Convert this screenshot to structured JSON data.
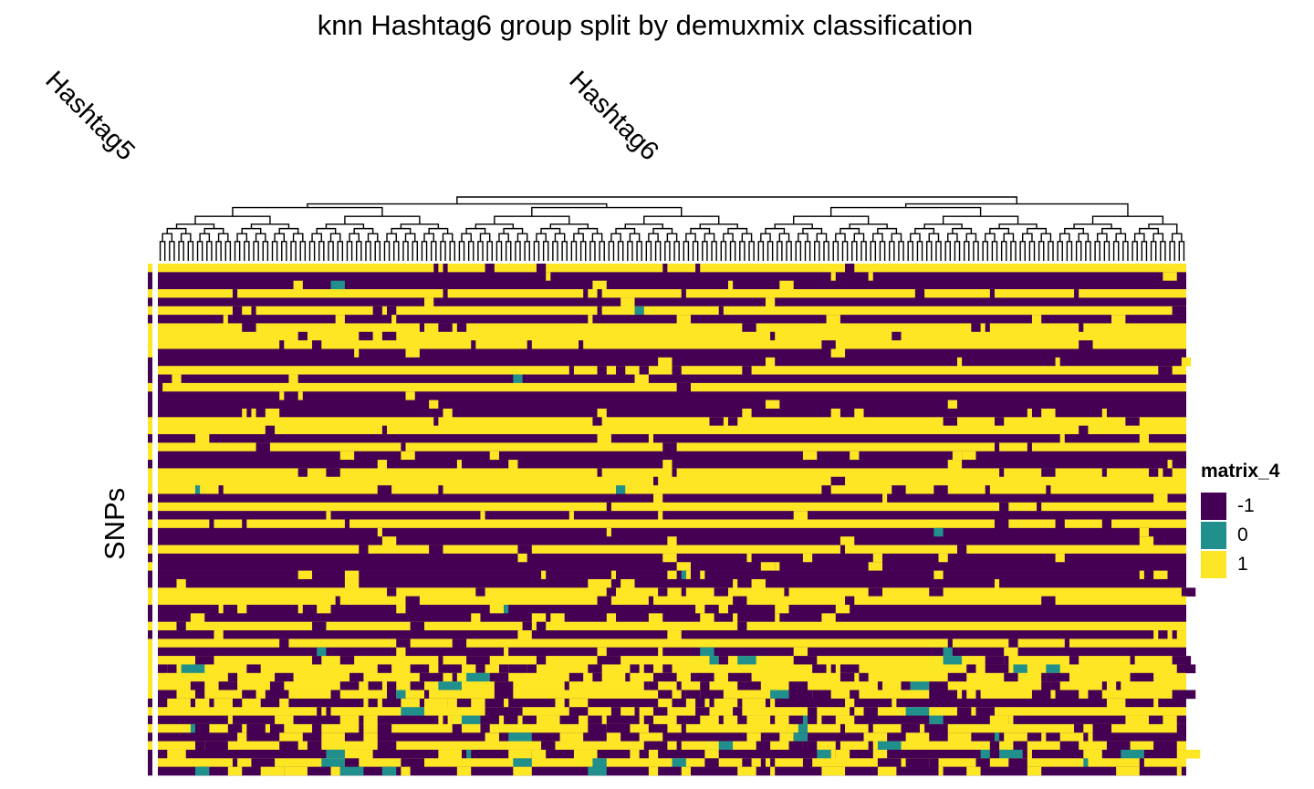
{
  "chart_data": {
    "type": "heatmap",
    "title": "knn Hashtag6 group split by demuxmix classification",
    "column_slices": [
      {
        "name": "Hashtag5",
        "n_columns": 1
      },
      {
        "name": "Hashtag6",
        "n_columns": 220
      }
    ],
    "row_title": "SNPs",
    "n_rows": 60,
    "value_scale": [
      -1,
      0,
      1
    ],
    "colors": {
      "-1": "#440154",
      "0": "#21908c",
      "1": "#fde725"
    },
    "row_base_values": [
      1,
      -1,
      -1,
      1,
      -1,
      1,
      -1,
      1,
      1,
      1,
      -1,
      -1,
      1,
      -1,
      1,
      -1,
      -1,
      -1,
      1,
      1,
      -1,
      1,
      -1,
      -1,
      1,
      1,
      1,
      -1,
      1,
      -1,
      1,
      -1,
      -1,
      1,
      -1,
      -1,
      -1,
      -1,
      1,
      1,
      -1,
      -1,
      1,
      -1,
      1,
      -1,
      1,
      1,
      1,
      1,
      1,
      -1,
      1,
      -1,
      1,
      -1,
      1,
      -1,
      1,
      -1
    ],
    "dendrogram": {
      "position": "top",
      "note": "column clustering"
    },
    "legend": {
      "title": "matrix_4",
      "position": "right",
      "entries": [
        {
          "label": "-1",
          "color": "#440154"
        },
        {
          "label": "0",
          "color": "#21908c"
        },
        {
          "label": "1",
          "color": "#fde725"
        }
      ]
    }
  }
}
